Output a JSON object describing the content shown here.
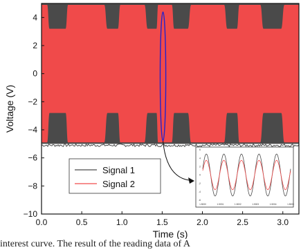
{
  "chart_data": {
    "type": "area",
    "title": "",
    "xlabel": "Time (s)",
    "ylabel": "Voltage (V)",
    "xlim": [
      0,
      3.2
    ],
    "ylim": [
      -10,
      5
    ],
    "xticks": [
      0.0,
      0.5,
      1.0,
      1.5,
      2.0,
      2.5,
      3.0
    ],
    "xtick_labels": [
      "0.0",
      "0.5",
      "1.0",
      "1.5",
      "2.0",
      "2.5",
      "3.0"
    ],
    "yticks": [
      -10,
      -8,
      -6,
      -4,
      -2,
      0,
      2,
      4
    ],
    "ytick_labels": [
      "−10",
      "−8",
      "−6",
      "−4",
      "−2",
      "0",
      "2",
      "4"
    ],
    "grid": false,
    "legend_position": "lower-left",
    "series": [
      {
        "name": "Signal 1",
        "color": "#4a4a4a",
        "envelope_upper": 5.0,
        "envelope_lower": -5.0,
        "baseline_noise": -5.1
      },
      {
        "name": "Signal 2",
        "color": "#f04a4a",
        "envelope_x": [
          0.0,
          0.07,
          0.1,
          0.3,
          0.33,
          0.78,
          0.82,
          0.95,
          0.98,
          1.28,
          1.32,
          1.43,
          1.45,
          1.62,
          1.65,
          1.82,
          1.86,
          2.27,
          2.31,
          2.43,
          2.46,
          2.72,
          2.76,
          2.98,
          3.02,
          3.2
        ],
        "envelope_upper": [
          4.9,
          4.9,
          3.2,
          3.2,
          4.9,
          4.9,
          3.2,
          3.2,
          4.9,
          4.9,
          3.2,
          3.2,
          4.9,
          4.9,
          3.2,
          3.2,
          4.9,
          4.9,
          3.2,
          3.2,
          4.9,
          4.9,
          3.2,
          3.2,
          4.9,
          4.9
        ],
        "envelope_lower": [
          -4.9,
          -4.9,
          -2.8,
          -2.8,
          -4.9,
          -4.9,
          -2.8,
          -2.8,
          -4.9,
          -4.9,
          -2.8,
          -2.8,
          -4.9,
          -4.9,
          -2.8,
          -2.8,
          -4.9,
          -4.9,
          -2.8,
          -2.8,
          -4.9,
          -4.9,
          -2.8,
          -2.8,
          -4.9,
          -4.9
        ]
      }
    ],
    "annotation": {
      "ellipse_center": [
        1.51,
        -0.2
      ],
      "ellipse_half_width": 0.035,
      "ellipse_half_height": 4.6,
      "ellipse_color": "#2222cc",
      "arrow_to_inset": true
    },
    "inset": {
      "xlim": [
        1.5,
        1.5005
      ],
      "ylim": [
        -6,
        6
      ],
      "xtick_labels": [
        "1.5000",
        "1.5001",
        "1.5002",
        "1.5003",
        "1.5004",
        "1.5005"
      ],
      "ytick_labels": [
        "6",
        "4",
        "2",
        "0",
        "-2",
        "-4",
        "-6"
      ],
      "cycles": 5,
      "signal1_amplitude": 5,
      "signal2_amplitude": 3.5
    }
  },
  "caption": "interest curve. The result of the reading data of A"
}
